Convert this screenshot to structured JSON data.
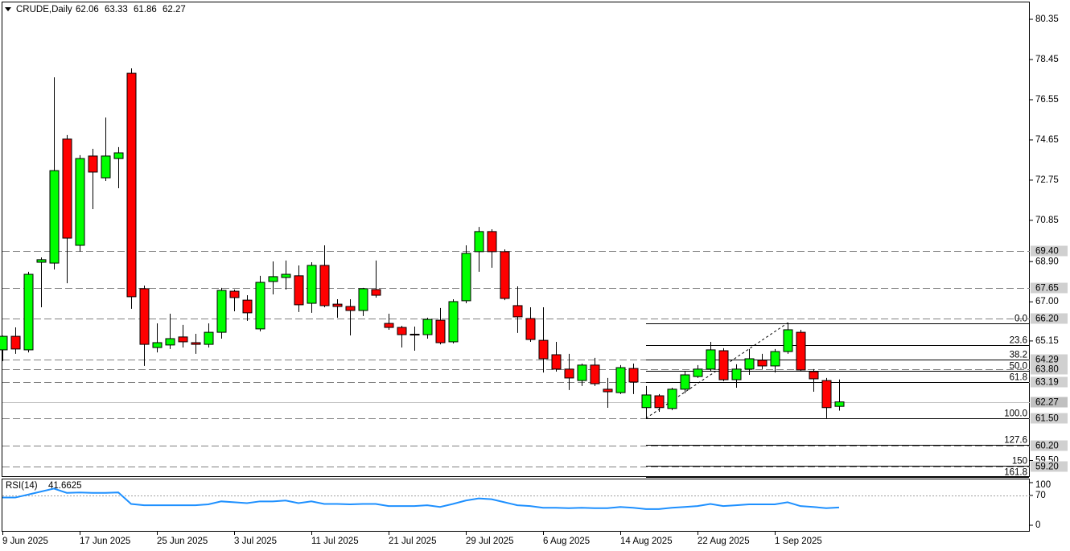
{
  "chart_data": {
    "type": "candlestick",
    "title": "CRUDE,Daily",
    "categories": [
      "9 Jun 2025",
      null,
      null,
      null,
      null,
      null,
      "17 Jun 2025",
      null,
      null,
      null,
      null,
      null,
      "25 Jun 2025",
      null,
      null,
      null,
      null,
      null,
      "3 Jul 2025",
      null,
      null,
      null,
      null,
      null,
      "11 Jul 2025",
      null,
      null,
      null,
      null,
      null,
      "21 Jul 2025",
      null,
      null,
      null,
      null,
      null,
      "29 Jul 2025",
      null,
      null,
      null,
      null,
      null,
      "6 Aug 2025",
      null,
      null,
      null,
      null,
      null,
      "14 Aug 2025",
      null,
      null,
      null,
      null,
      null,
      "22 Aug 2025",
      null,
      null,
      null,
      null,
      null,
      "1 Sep 2025",
      null,
      null,
      null,
      null,
      null
    ],
    "series": [
      {
        "up_color": "#00ff00",
        "down_color": "#ff0000",
        "open": [
          64.73,
          65.37,
          64.73,
          68.87,
          68.83,
          74.69,
          69.67,
          73.89,
          72.86,
          73.77,
          77.8,
          67.62,
          64.84,
          64.96,
          65.34,
          65.07,
          64.99,
          65.56,
          67.5,
          67.08,
          65.72,
          67.96,
          68.15,
          68.23,
          66.93,
          68.72,
          66.89,
          66.78,
          66.59,
          67.58,
          65.98,
          65.79,
          65.47,
          65.45,
          66.13,
          65.11,
          67.05,
          69.37,
          70.32,
          69.37,
          66.82,
          66.21,
          65.18,
          64.5,
          63.82,
          63.28,
          64.01,
          62.87,
          62.71,
          63.85,
          62.0,
          62.56,
          61.96,
          62.87,
          63.47,
          63.82,
          64.69,
          63.32,
          63.82,
          64.24,
          63.97,
          64.65,
          65.56,
          63.7,
          63.28,
          62.06
        ],
        "high": [
          65.4,
          65.79,
          68.42,
          69.1,
          77.61,
          74.88,
          73.93,
          74.23,
          75.71,
          74.31,
          78.03,
          67.77,
          65.98,
          66.44,
          65.91,
          65.49,
          65.98,
          67.66,
          67.58,
          67.31,
          68.23,
          68.91,
          68.95,
          68.72,
          68.87,
          69.67,
          67.12,
          67.12,
          67.66,
          68.95,
          66.44,
          65.87,
          65.83,
          66.25,
          66.71,
          67.12,
          69.67,
          70.54,
          70.43,
          69.48,
          67.73,
          66.74,
          66.74,
          65.11,
          64.54,
          64.08,
          64.35,
          63.4,
          64.01,
          64.08,
          63.02,
          62.64,
          62.94,
          63.7,
          64.01,
          65.11,
          64.81,
          64.05,
          64.77,
          64.54,
          64.77,
          66.02,
          65.68,
          63.82,
          63.4,
          63.33
        ],
        "low": [
          64.2,
          64.54,
          64.61,
          66.74,
          68.53,
          67.88,
          69.37,
          71.38,
          72.71,
          72.37,
          66.67,
          63.97,
          64.61,
          64.77,
          64.84,
          64.54,
          64.84,
          65.26,
          66.55,
          66.1,
          65.6,
          67.35,
          67.58,
          66.52,
          66.48,
          66.74,
          66.25,
          65.41,
          66.33,
          67.2,
          65.68,
          64.84,
          64.69,
          65.26,
          64.99,
          65.03,
          66.93,
          68.42,
          68.61,
          67.08,
          65.53,
          65.11,
          63.66,
          63.7,
          62.83,
          63.02,
          63.02,
          61.99,
          62.64,
          62.64,
          61.5,
          61.8,
          61.88,
          62.68,
          63.4,
          63.7,
          63.25,
          62.94,
          63.55,
          63.82,
          63.66,
          64.54,
          63.7,
          62.75,
          61.5,
          61.86
        ],
        "close": [
          65.37,
          64.77,
          68.3,
          68.99,
          73.2,
          70.01,
          73.77,
          73.13,
          73.89,
          74.04,
          67.24,
          64.99,
          65.07,
          65.26,
          65.11,
          64.99,
          65.56,
          67.54,
          67.2,
          66.48,
          67.92,
          68.19,
          68.3,
          66.86,
          68.72,
          66.82,
          66.78,
          66.59,
          67.62,
          67.31,
          65.79,
          65.45,
          65.43,
          66.17,
          65.07,
          67.01,
          69.29,
          70.32,
          69.37,
          67.16,
          66.29,
          65.22,
          64.31,
          63.82,
          63.4,
          64.01,
          63.13,
          62.75,
          63.89,
          63.21,
          62.6,
          62.0,
          62.87,
          63.55,
          63.82,
          64.73,
          63.32,
          63.82,
          64.31,
          63.97,
          64.65,
          65.68,
          63.78,
          63.36,
          62.0,
          62.27
        ]
      }
    ],
    "ylim": [
      58.76,
      81.11
    ],
    "yticks": [
      80.35,
      78.45,
      76.55,
      74.65,
      72.75,
      70.85,
      {
        "value": 68.9,
        "label": "68.90"
      },
      {
        "value": 67,
        "label": "67.00"
      },
      65.15,
      {
        "value": 59.5,
        "label": "59.50"
      }
    ],
    "levels": [
      {
        "value": 69.4,
        "label": "69.40"
      },
      67.65,
      {
        "value": 66.2,
        "label": "66.20"
      },
      64.29,
      {
        "value": 63.8,
        "label": "63.80"
      },
      63.19,
      {
        "value": 61.5,
        "label": "61.50"
      },
      {
        "value": 60.2,
        "label": "60.20"
      },
      {
        "value": 59.2,
        "label": "59.20"
      }
    ],
    "level_color": "#808080",
    "fibonacci": {
      "high": 66.0,
      "low": 61.5,
      "levels": [
        {
          "value": 0,
          "label": "0.0"
        },
        23.6,
        38.2,
        {
          "value": 50,
          "label": "50.0"
        },
        61.8,
        {
          "value": 100,
          "label": "100.0"
        },
        127.6,
        150,
        161.8
      ]
    },
    "indicator": {
      "name": "RSI(14)",
      "color": "#1e90ff",
      "ylim": [
        0,
        100
      ],
      "yticks": [
        0,
        70,
        100
      ],
      "levels": [
        70
      ],
      "values": [
        65,
        65,
        72,
        79,
        86,
        76,
        77,
        76,
        76,
        77,
        50,
        47,
        47,
        47,
        47,
        47,
        49,
        56,
        54,
        52,
        56,
        56,
        58,
        52,
        56,
        50,
        50,
        49,
        50,
        50,
        45,
        45,
        45,
        47,
        43,
        50,
        58,
        63,
        61,
        54,
        47,
        45,
        41,
        41,
        40,
        41,
        40,
        40,
        43,
        41,
        38,
        38,
        41,
        43,
        45,
        50,
        45,
        47,
        49,
        49,
        49,
        54,
        45,
        43,
        40,
        41.6625
      ]
    }
  }
}
